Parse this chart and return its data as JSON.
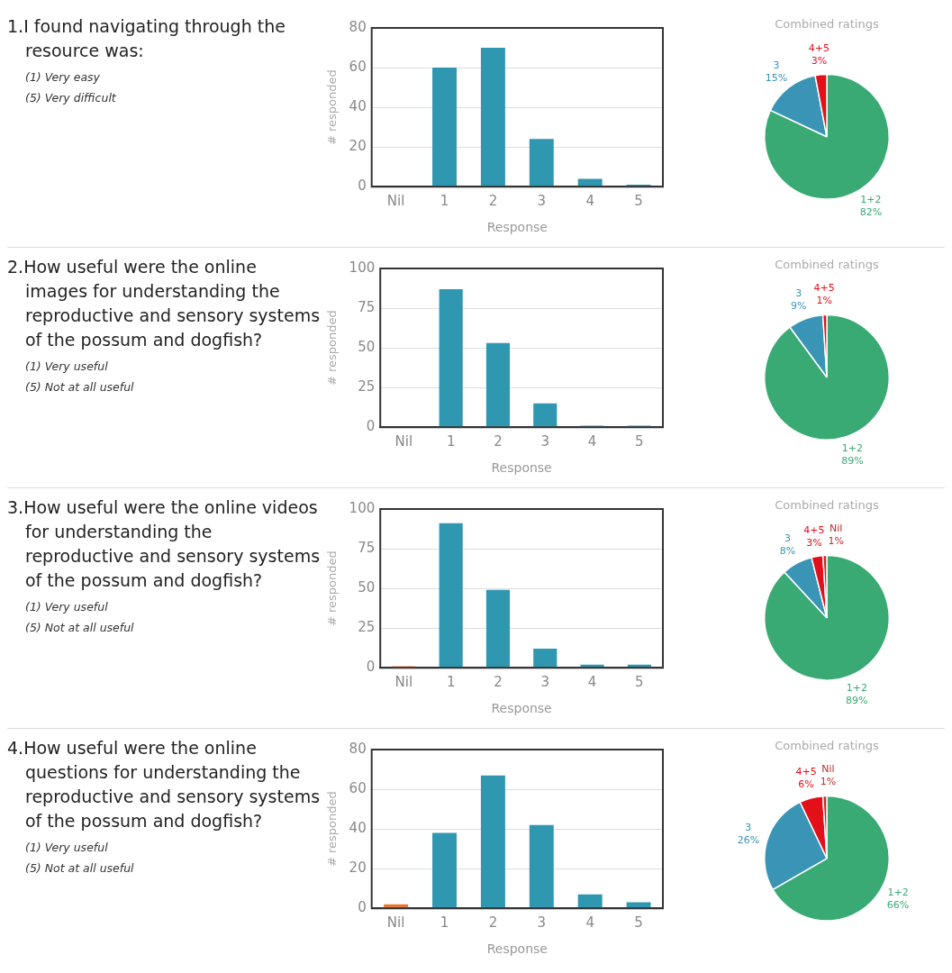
{
  "chart_data": [
    {
      "type": "bar",
      "title": "1.I found navigating through the resource was:",
      "annotations": [
        "(1) Very easy",
        "(5) Very difficult"
      ],
      "xlabel": "Response",
      "ylabel": "# responded",
      "categories": [
        "Nil",
        "1",
        "2",
        "3",
        "4",
        "5"
      ],
      "values": [
        0,
        60,
        70,
        24,
        4,
        1
      ],
      "colors": [
        "#e8763a",
        "#2f97b0",
        "#2f97b0",
        "#2f97b0",
        "#2f97b0",
        "#2f97b0"
      ],
      "ylim": [
        0,
        80
      ],
      "yticks": [
        0,
        20,
        40,
        60,
        80
      ],
      "grid": "y"
    },
    {
      "type": "pie",
      "title": "Combined ratings",
      "categories": [
        "1+2",
        "3",
        "4+5"
      ],
      "values": [
        82,
        15,
        3
      ],
      "value_labels": [
        "82%",
        "15%",
        "3%"
      ],
      "colors": [
        "#3aaa74",
        "#3a94b5",
        "#e3101a"
      ]
    },
    {
      "type": "bar",
      "title": "2.How useful were the online images for understanding the reproductive and sensory systems of the possum and dogfish?",
      "annotations": [
        "(1) Very useful",
        "(5) Not at all useful"
      ],
      "xlabel": "Response",
      "ylabel": "# responded",
      "categories": [
        "Nil",
        "1",
        "2",
        "3",
        "4",
        "5"
      ],
      "values": [
        0,
        87,
        53,
        15,
        1,
        1
      ],
      "colors": [
        "#e8763a",
        "#2f97b0",
        "#2f97b0",
        "#2f97b0",
        "#2f97b0",
        "#2f97b0"
      ],
      "ylim": [
        0,
        100
      ],
      "yticks": [
        0,
        25,
        50,
        75,
        100
      ],
      "grid": "y"
    },
    {
      "type": "pie",
      "title": "Combined ratings",
      "categories": [
        "1+2",
        "3",
        "4+5"
      ],
      "values": [
        89,
        9,
        1
      ],
      "value_labels": [
        "89%",
        "9%",
        "1%"
      ],
      "colors": [
        "#3aaa74",
        "#3a94b5",
        "#e3101a"
      ]
    },
    {
      "type": "bar",
      "title": "3.How useful were the online videos for understanding the reproductive and sensory systems of the possum and dogfish?",
      "annotations": [
        "(1) Very useful",
        "(5) Not at all useful"
      ],
      "xlabel": "Response",
      "ylabel": "# responded",
      "categories": [
        "Nil",
        "1",
        "2",
        "3",
        "4",
        "5"
      ],
      "values": [
        1,
        91,
        49,
        12,
        2,
        2
      ],
      "colors": [
        "#e8763a",
        "#2f97b0",
        "#2f97b0",
        "#2f97b0",
        "#2f97b0",
        "#2f97b0"
      ],
      "ylim": [
        0,
        100
      ],
      "yticks": [
        0,
        25,
        50,
        75,
        100
      ],
      "grid": "y"
    },
    {
      "type": "pie",
      "title": "Combined ratings",
      "categories": [
        "1+2",
        "3",
        "4+5",
        "Nil"
      ],
      "values": [
        89,
        8,
        3,
        1
      ],
      "value_labels": [
        "89%",
        "8%",
        "3%",
        "1%"
      ],
      "colors": [
        "#3aaa74",
        "#3a94b5",
        "#e3101a",
        "#b5322a"
      ]
    },
    {
      "type": "bar",
      "title": "4.How useful were the online questions for understanding the reproductive and sensory systems of the possum and dogfish?",
      "annotations": [
        "(1) Very useful",
        "(5) Not at all useful"
      ],
      "xlabel": "Response",
      "ylabel": "# responded",
      "categories": [
        "Nil",
        "1",
        "2",
        "3",
        "4",
        "5"
      ],
      "values": [
        2,
        38,
        67,
        42,
        7,
        3
      ],
      "colors": [
        "#e8763a",
        "#2f97b0",
        "#2f97b0",
        "#2f97b0",
        "#2f97b0",
        "#2f97b0"
      ],
      "ylim": [
        0,
        80
      ],
      "yticks": [
        0,
        20,
        40,
        60,
        80
      ],
      "grid": "y"
    },
    {
      "type": "pie",
      "title": "Combined ratings",
      "categories": [
        "1+2",
        "3",
        "4+5",
        "Nil"
      ],
      "values": [
        66,
        26,
        6,
        1
      ],
      "value_labels": [
        "66%",
        "26%",
        "6%",
        "1%"
      ],
      "colors": [
        "#3aaa74",
        "#3a94b5",
        "#e3101a",
        "#b5322a"
      ]
    }
  ]
}
